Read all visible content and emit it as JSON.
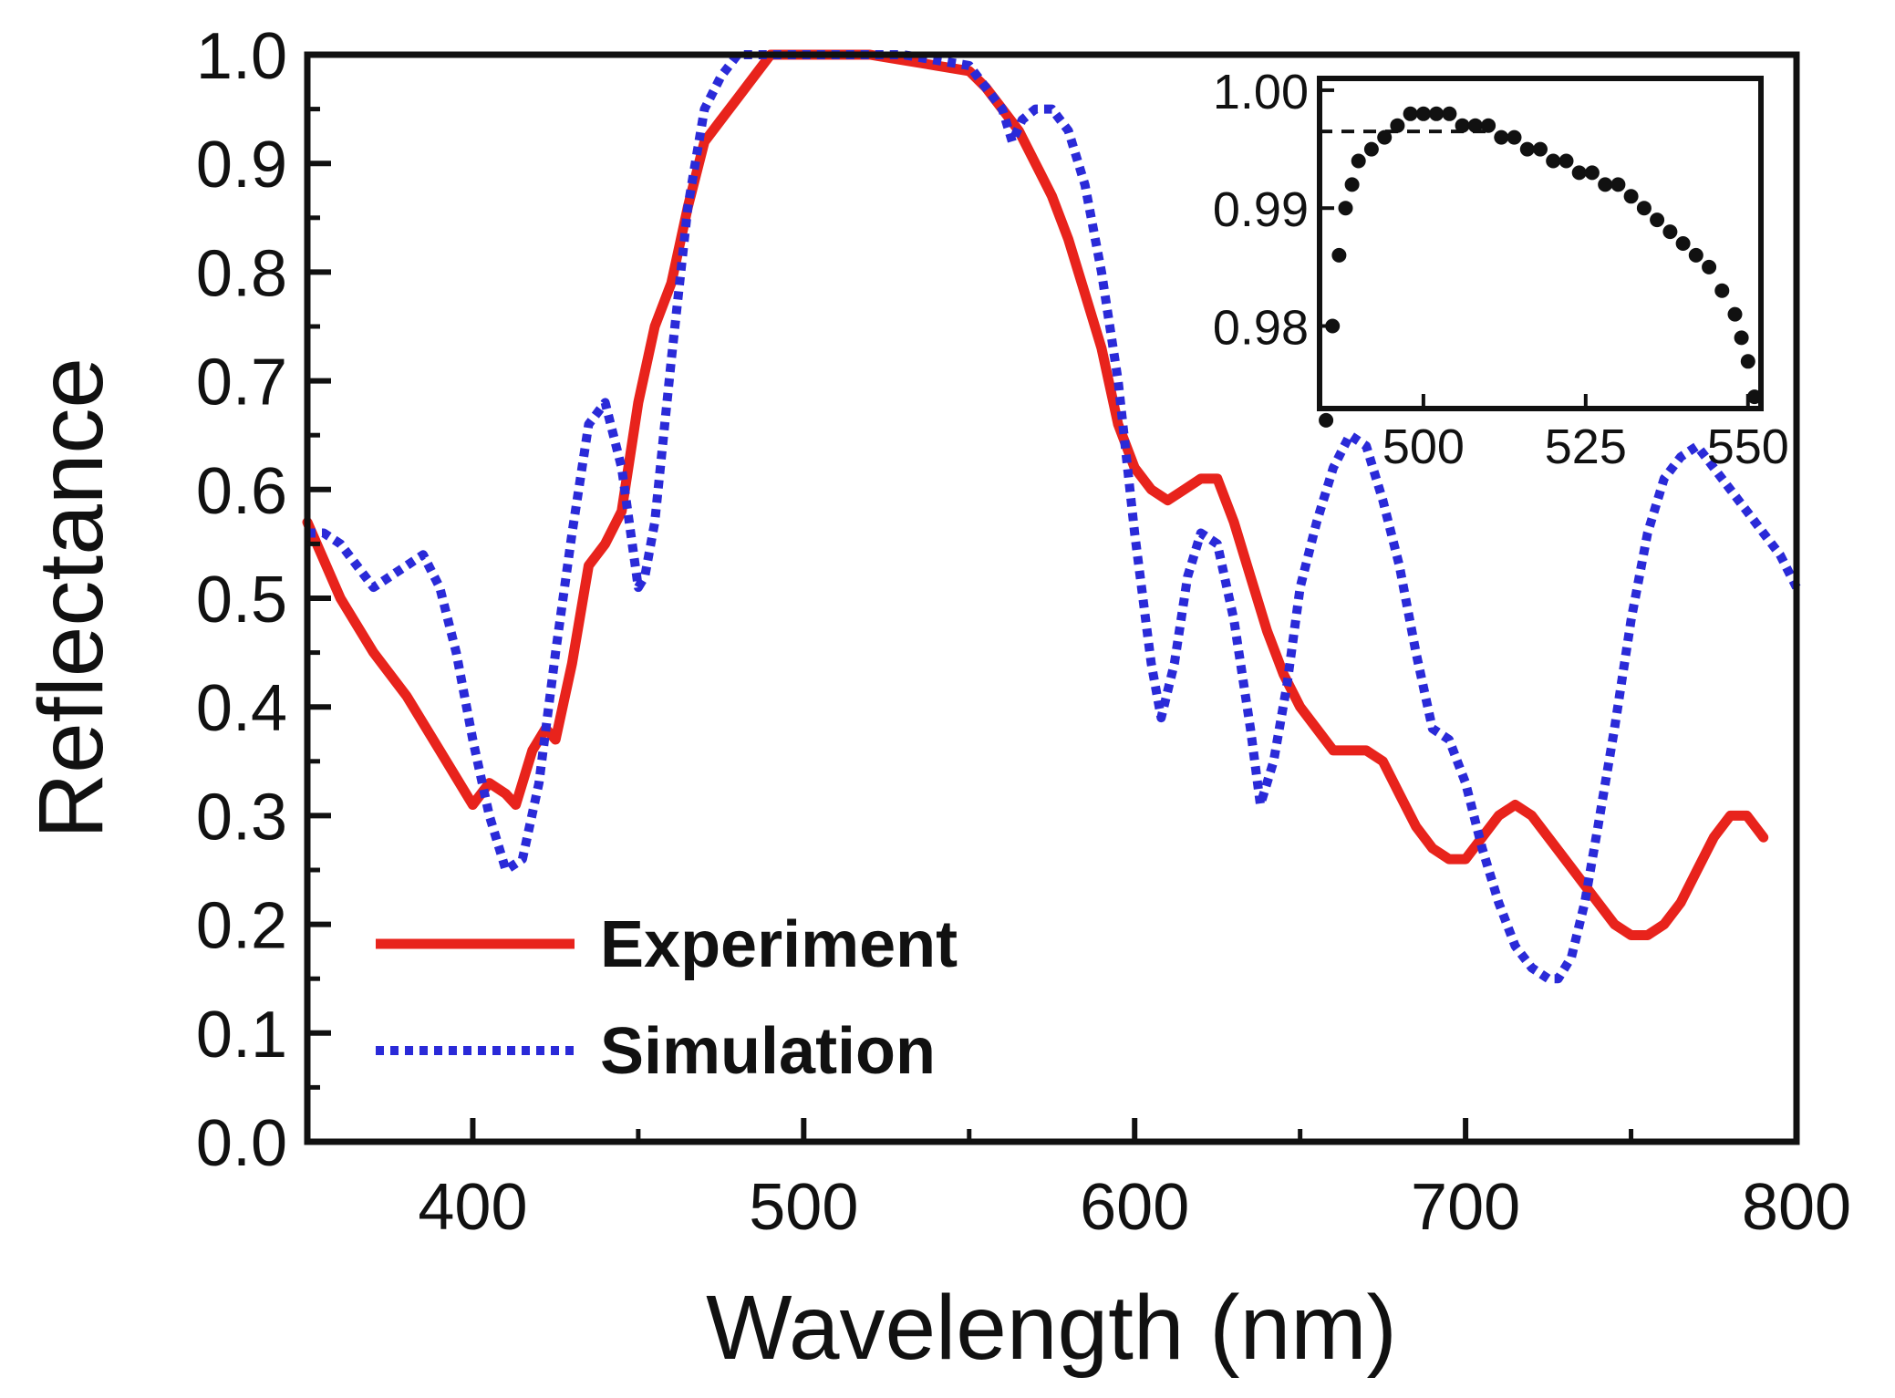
{
  "chart_data": {
    "type": "line",
    "title": "",
    "xlabel": "Wavelength (nm)",
    "ylabel": "Reflectance",
    "xlim": [
      350,
      800
    ],
    "ylim": [
      0.0,
      1.0
    ],
    "xticks": [
      400,
      500,
      600,
      700,
      800
    ],
    "xtick_labels": [
      "400",
      "500",
      "600",
      "700",
      "800"
    ],
    "yticks": [
      0.0,
      0.1,
      0.2,
      0.3,
      0.4,
      0.5,
      0.6,
      0.7,
      0.8,
      0.9,
      1.0
    ],
    "ytick_labels": [
      "0.0",
      "0.1",
      "0.2",
      "0.3",
      "0.4",
      "0.5",
      "0.6",
      "0.7",
      "0.8",
      "0.9",
      "1.0"
    ],
    "grid": false,
    "legend": {
      "placement": "lower-left",
      "entries": [
        "Experiment",
        "Simulation"
      ]
    },
    "series": [
      {
        "name": "Experiment",
        "color": "#e8231c",
        "style": "solid",
        "x": [
          350,
          360,
          370,
          380,
          390,
          400,
          405,
          410,
          413,
          418,
          422,
          425,
          430,
          435,
          440,
          445,
          450,
          455,
          460,
          465,
          470,
          475,
          480,
          485,
          490,
          500,
          510,
          520,
          530,
          540,
          550,
          555,
          560,
          565,
          570,
          575,
          580,
          585,
          590,
          595,
          600,
          605,
          610,
          615,
          620,
          625,
          630,
          635,
          640,
          645,
          650,
          655,
          660,
          665,
          670,
          675,
          680,
          685,
          690,
          695,
          700,
          705,
          710,
          715,
          720,
          725,
          730,
          735,
          740,
          745,
          750,
          755,
          760,
          765,
          770,
          775,
          780,
          785,
          790
        ],
        "y": [
          0.57,
          0.5,
          0.45,
          0.41,
          0.36,
          0.31,
          0.33,
          0.32,
          0.31,
          0.36,
          0.38,
          0.37,
          0.44,
          0.53,
          0.55,
          0.58,
          0.68,
          0.75,
          0.79,
          0.86,
          0.92,
          0.94,
          0.96,
          0.98,
          1.0,
          1.0,
          1.0,
          1.0,
          0.995,
          0.99,
          0.985,
          0.97,
          0.95,
          0.93,
          0.9,
          0.87,
          0.83,
          0.78,
          0.73,
          0.66,
          0.62,
          0.6,
          0.59,
          0.6,
          0.61,
          0.61,
          0.57,
          0.52,
          0.47,
          0.43,
          0.4,
          0.38,
          0.36,
          0.36,
          0.36,
          0.35,
          0.32,
          0.29,
          0.27,
          0.26,
          0.26,
          0.28,
          0.3,
          0.31,
          0.3,
          0.28,
          0.26,
          0.24,
          0.22,
          0.2,
          0.19,
          0.19,
          0.2,
          0.22,
          0.25,
          0.28,
          0.3,
          0.3,
          0.28
        ]
      },
      {
        "name": "Simulation",
        "color": "#2a2ad8",
        "style": "dotted",
        "x": [
          350,
          355,
          360,
          365,
          370,
          375,
          380,
          385,
          390,
          395,
          400,
          405,
          410,
          415,
          420,
          425,
          430,
          435,
          440,
          445,
          450,
          452,
          455,
          460,
          465,
          470,
          475,
          480,
          485,
          490,
          500,
          510,
          520,
          530,
          540,
          550,
          555,
          560,
          563,
          566,
          570,
          575,
          580,
          585,
          590,
          595,
          600,
          605,
          608,
          612,
          616,
          620,
          625,
          630,
          635,
          638,
          642,
          646,
          650,
          655,
          660,
          665,
          670,
          675,
          680,
          685,
          690,
          695,
          700,
          705,
          710,
          715,
          720,
          725,
          728,
          732,
          736,
          740,
          745,
          750,
          755,
          760,
          765,
          770,
          775,
          780,
          785,
          790,
          795,
          800
        ],
        "y": [
          0.56,
          0.56,
          0.55,
          0.53,
          0.51,
          0.52,
          0.53,
          0.54,
          0.51,
          0.45,
          0.37,
          0.3,
          0.25,
          0.26,
          0.33,
          0.45,
          0.56,
          0.66,
          0.68,
          0.62,
          0.51,
          0.52,
          0.57,
          0.72,
          0.86,
          0.95,
          0.98,
          1.0,
          1.0,
          1.0,
          1.0,
          1.0,
          1.0,
          1.0,
          0.995,
          0.99,
          0.97,
          0.95,
          0.92,
          0.94,
          0.95,
          0.95,
          0.93,
          0.88,
          0.8,
          0.7,
          0.56,
          0.44,
          0.39,
          0.44,
          0.52,
          0.56,
          0.55,
          0.48,
          0.38,
          0.31,
          0.35,
          0.42,
          0.51,
          0.57,
          0.62,
          0.65,
          0.64,
          0.59,
          0.53,
          0.45,
          0.38,
          0.37,
          0.33,
          0.27,
          0.22,
          0.18,
          0.16,
          0.15,
          0.15,
          0.17,
          0.22,
          0.29,
          0.38,
          0.48,
          0.56,
          0.61,
          0.63,
          0.64,
          0.62,
          0.6,
          0.58,
          0.56,
          0.54,
          0.51
        ]
      }
    ],
    "inset": {
      "type": "scatter",
      "xlim": [
        484,
        552
      ],
      "ylim": [
        0.973,
        1.001
      ],
      "xticks": [
        500,
        525,
        550
      ],
      "xtick_labels": [
        "500",
        "525",
        "550"
      ],
      "yticks": [
        0.98,
        0.99,
        1.0
      ],
      "ytick_labels": [
        "0.98",
        "0.99",
        "1.00"
      ],
      "reference_line": {
        "y": 0.9965,
        "style": "dashed"
      },
      "series": [
        {
          "color": "#111111",
          "x": [
            485,
            486,
            487,
            488,
            489,
            490,
            492,
            494,
            496,
            498,
            500,
            502,
            504,
            506,
            508,
            510,
            512,
            514,
            516,
            518,
            520,
            522,
            524,
            526,
            528,
            530,
            532,
            534,
            536,
            538,
            540,
            542,
            544,
            546,
            548,
            549,
            550,
            551
          ],
          "y": [
            0.972,
            0.98,
            0.986,
            0.99,
            0.992,
            0.994,
            0.995,
            0.996,
            0.997,
            0.998,
            0.998,
            0.998,
            0.998,
            0.997,
            0.997,
            0.997,
            0.996,
            0.996,
            0.995,
            0.995,
            0.994,
            0.994,
            0.993,
            0.993,
            0.992,
            0.992,
            0.991,
            0.99,
            0.989,
            0.988,
            0.987,
            0.986,
            0.985,
            0.983,
            0.981,
            0.979,
            0.977,
            0.974
          ]
        }
      ]
    }
  }
}
